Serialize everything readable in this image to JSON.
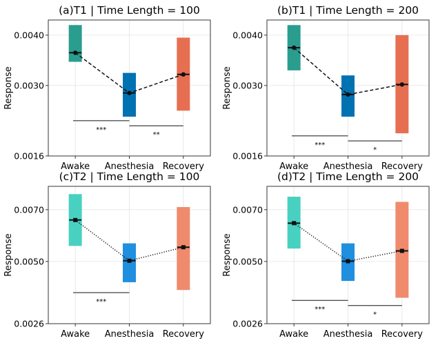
{
  "chart_data": [
    {
      "type": "range",
      "title": "(a)T1 | Time Length = 100",
      "ylabel": "Response",
      "ylim": [
        0.0016,
        0.0043
      ],
      "yticks": [
        0.0016,
        0.003,
        0.004
      ],
      "ytick_labels": [
        "0.0016",
        "0.0030",
        "0.0040"
      ],
      "categories": [
        "Awake",
        "Anesthesia",
        "Recovery"
      ],
      "colors": [
        "#2a9d8f",
        "#0072b2",
        "#e76f51"
      ],
      "low": [
        0.00347,
        0.00238,
        0.0025
      ],
      "high": [
        0.0042,
        0.00325,
        0.00395
      ],
      "mean": [
        0.00365,
        0.00285,
        0.00322
      ],
      "line_style": "dashed",
      "marker": "circle",
      "significance": [
        {
          "from": 0,
          "to": 1,
          "y": 0.0023,
          "label": "***"
        },
        {
          "from": 1,
          "to": 2,
          "y": 0.0022,
          "label": "**"
        }
      ]
    },
    {
      "type": "range",
      "title": "(b)T1 | Time Length = 200",
      "ylabel": "Response",
      "ylim": [
        0.0016,
        0.0043
      ],
      "yticks": [
        0.0016,
        0.003,
        0.004
      ],
      "ytick_labels": [
        "0.0016",
        "0.0030",
        "0.0040"
      ],
      "categories": [
        "Awake",
        "Anesthesia",
        "Recovery"
      ],
      "colors": [
        "#2a9d8f",
        "#0072b2",
        "#e76f51"
      ],
      "low": [
        0.0033,
        0.00238,
        0.00205
      ],
      "high": [
        0.0042,
        0.0032,
        0.004
      ],
      "mean": [
        0.00375,
        0.00282,
        0.00302
      ],
      "line_style": "dashed",
      "marker": "circle",
      "significance": [
        {
          "from": 0,
          "to": 1,
          "y": 0.002,
          "label": "***"
        },
        {
          "from": 1,
          "to": 2,
          "y": 0.0019,
          "label": "*"
        }
      ]
    },
    {
      "type": "range",
      "title": "(c)T2 | Time Length = 100",
      "ylabel": "Response",
      "ylim": [
        0.0026,
        0.0079
      ],
      "yticks": [
        0.0026,
        0.005,
        0.007
      ],
      "ytick_labels": [
        "0.0026",
        "0.0050",
        "0.0070"
      ],
      "categories": [
        "Awake",
        "Anesthesia",
        "Recovery"
      ],
      "colors": [
        "#48d1c0",
        "#1f8fe0",
        "#f08a6c"
      ],
      "low": [
        0.0056,
        0.0042,
        0.0039
      ],
      "high": [
        0.0076,
        0.0057,
        0.0071
      ],
      "mean": [
        0.0066,
        0.00503,
        0.00555
      ],
      "line_style": "dotted",
      "marker": "square",
      "significance": [
        {
          "from": 0,
          "to": 1,
          "y": 0.0038,
          "label": "***"
        }
      ]
    },
    {
      "type": "range",
      "title": "(d)T2 | Time Length = 200",
      "ylabel": "Response",
      "ylim": [
        0.0026,
        0.0079
      ],
      "yticks": [
        0.0026,
        0.005,
        0.007
      ],
      "ytick_labels": [
        "0.0026",
        "0.0050",
        "0.0070"
      ],
      "categories": [
        "Awake",
        "Anesthesia",
        "Recovery"
      ],
      "colors": [
        "#48d1c0",
        "#1f8fe0",
        "#f08a6c"
      ],
      "low": [
        0.0055,
        0.00425,
        0.0036
      ],
      "high": [
        0.0075,
        0.0057,
        0.0073
      ],
      "mean": [
        0.00648,
        0.00501,
        0.00541
      ],
      "line_style": "dotted",
      "marker": "square",
      "significance": [
        {
          "from": 0,
          "to": 1,
          "y": 0.0035,
          "label": "***"
        },
        {
          "from": 1,
          "to": 2,
          "y": 0.0033,
          "label": "*"
        }
      ]
    }
  ]
}
